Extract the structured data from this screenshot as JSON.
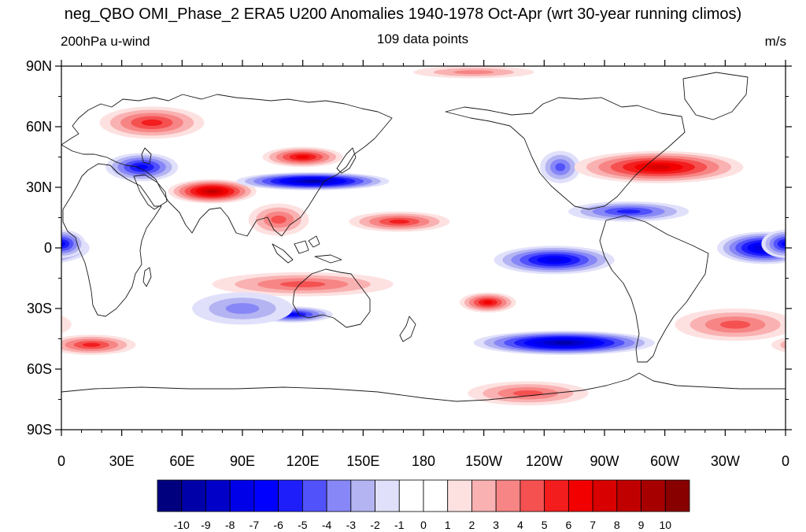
{
  "header": {
    "title": "neg_QBO OMI_Phase_2 ERA5 U200 Anomalies 1940-1978 Oct-Apr (wrt 30-year running climos)",
    "left_label": "200hPa u-wind",
    "center_label": "109 data points",
    "right_label": "m/s"
  },
  "map": {
    "projection": "cylindrical-equidistant",
    "lon_range": [
      0,
      360
    ],
    "lat_range": [
      -90,
      90
    ],
    "y_ticks": [
      {
        "lat": 90,
        "label": "90N"
      },
      {
        "lat": 60,
        "label": "60N"
      },
      {
        "lat": 30,
        "label": "30N"
      },
      {
        "lat": 0,
        "label": "0"
      },
      {
        "lat": -30,
        "label": "30S"
      },
      {
        "lat": -60,
        "label": "60S"
      },
      {
        "lat": -90,
        "label": "90S"
      }
    ],
    "x_ticks": [
      {
        "lon": 0,
        "label": "0"
      },
      {
        "lon": 30,
        "label": "30E"
      },
      {
        "lon": 60,
        "label": "60E"
      },
      {
        "lon": 90,
        "label": "90E"
      },
      {
        "lon": 120,
        "label": "120E"
      },
      {
        "lon": 150,
        "label": "150E"
      },
      {
        "lon": 180,
        "label": "180"
      },
      {
        "lon": 210,
        "label": "150W"
      },
      {
        "lon": 240,
        "label": "120W"
      },
      {
        "lon": 270,
        "label": "90W"
      },
      {
        "lon": 300,
        "label": "60W"
      },
      {
        "lon": 330,
        "label": "30W"
      },
      {
        "lon": 360,
        "label": "0"
      }
    ],
    "anomaly_features": [
      {
        "lon": 45,
        "lat": 62,
        "rlon": 26,
        "rlat": 8,
        "value": 5,
        "sign": "positive"
      },
      {
        "lon": 40,
        "lat": 40,
        "rlon": 18,
        "rlat": 7,
        "value": -6,
        "sign": "negative"
      },
      {
        "lon": 75,
        "lat": 28,
        "rlon": 22,
        "rlat": 6,
        "value": 8,
        "sign": "positive"
      },
      {
        "lon": 125,
        "lat": 33,
        "rlon": 38,
        "rlat": 4.5,
        "value": -9,
        "sign": "negative"
      },
      {
        "lon": 120,
        "lat": 45,
        "rlon": 20,
        "rlat": 5,
        "value": 6,
        "sign": "positive"
      },
      {
        "lon": 168,
        "lat": 13,
        "rlon": 25,
        "rlat": 5,
        "value": 5,
        "sign": "positive"
      },
      {
        "lon": 108,
        "lat": 14,
        "rlon": 15,
        "rlat": 8,
        "value": 4,
        "sign": "positive"
      },
      {
        "lon": 248,
        "lat": 40,
        "rlon": 10,
        "rlat": 8,
        "value": -4,
        "sign": "negative"
      },
      {
        "lon": 297,
        "lat": 40,
        "rlon": 42,
        "rlat": 8,
        "value": 7,
        "sign": "positive"
      },
      {
        "lon": 282,
        "lat": 18,
        "rlon": 30,
        "rlat": 5,
        "value": -5,
        "sign": "negative"
      },
      {
        "lon": 245,
        "lat": -6,
        "rlon": 30,
        "rlat": 7,
        "value": -7,
        "sign": "negative"
      },
      {
        "lon": 350,
        "lat": 0,
        "rlon": 24,
        "rlat": 8,
        "value": -8,
        "sign": "negative"
      },
      {
        "lon": 0,
        "lat": 2,
        "rlon": 12,
        "rlat": 7,
        "value": -6,
        "sign": "negative"
      },
      {
        "lon": 120,
        "lat": -18,
        "rlon": 45,
        "rlat": 6,
        "value": 4,
        "sign": "positive"
      },
      {
        "lon": 212,
        "lat": -27,
        "rlon": 14,
        "rlat": 5,
        "value": 6,
        "sign": "positive"
      },
      {
        "lon": 250,
        "lat": -47,
        "rlon": 45,
        "rlat": 6,
        "value": -9,
        "sign": "negative"
      },
      {
        "lon": 115,
        "lat": -33,
        "rlon": 20,
        "rlat": 4,
        "value": -6,
        "sign": "negative"
      },
      {
        "lon": 205,
        "lat": 87,
        "rlon": 30,
        "rlat": 3,
        "value": 3,
        "sign": "positive"
      },
      {
        "lon": 15,
        "lat": -48,
        "rlon": 22,
        "rlat": 5,
        "value": 5,
        "sign": "positive"
      },
      {
        "lon": 335,
        "lat": -38,
        "rlon": 30,
        "rlat": 8,
        "value": 4,
        "sign": "positive"
      },
      {
        "lon": 232,
        "lat": -72,
        "rlon": 30,
        "rlat": 6,
        "value": 4,
        "sign": "positive"
      },
      {
        "lon": 90,
        "lat": -30,
        "rlon": 25,
        "rlat": 8,
        "value": -3,
        "sign": "negative"
      }
    ]
  },
  "colorbar": {
    "colors": [
      "#00007f",
      "#0000a8",
      "#0000c8",
      "#0000e8",
      "#0000ff",
      "#1e1efb",
      "#5252fb",
      "#8787f7",
      "#b4b4f3",
      "#e0e0fb",
      "#ffffff",
      "#ffffff",
      "#fde1e1",
      "#f9b1b1",
      "#f78585",
      "#f55151",
      "#f31d1d",
      "#f20000",
      "#d80000",
      "#c00000",
      "#a60000",
      "#880000"
    ],
    "labels": [
      "-10",
      "-9",
      "-8",
      "-7",
      "-6",
      "-5",
      "-4",
      "-3",
      "-2",
      "-1",
      "0",
      "1",
      "2",
      "3",
      "4",
      "5",
      "6",
      "7",
      "8",
      "9",
      "10"
    ]
  }
}
